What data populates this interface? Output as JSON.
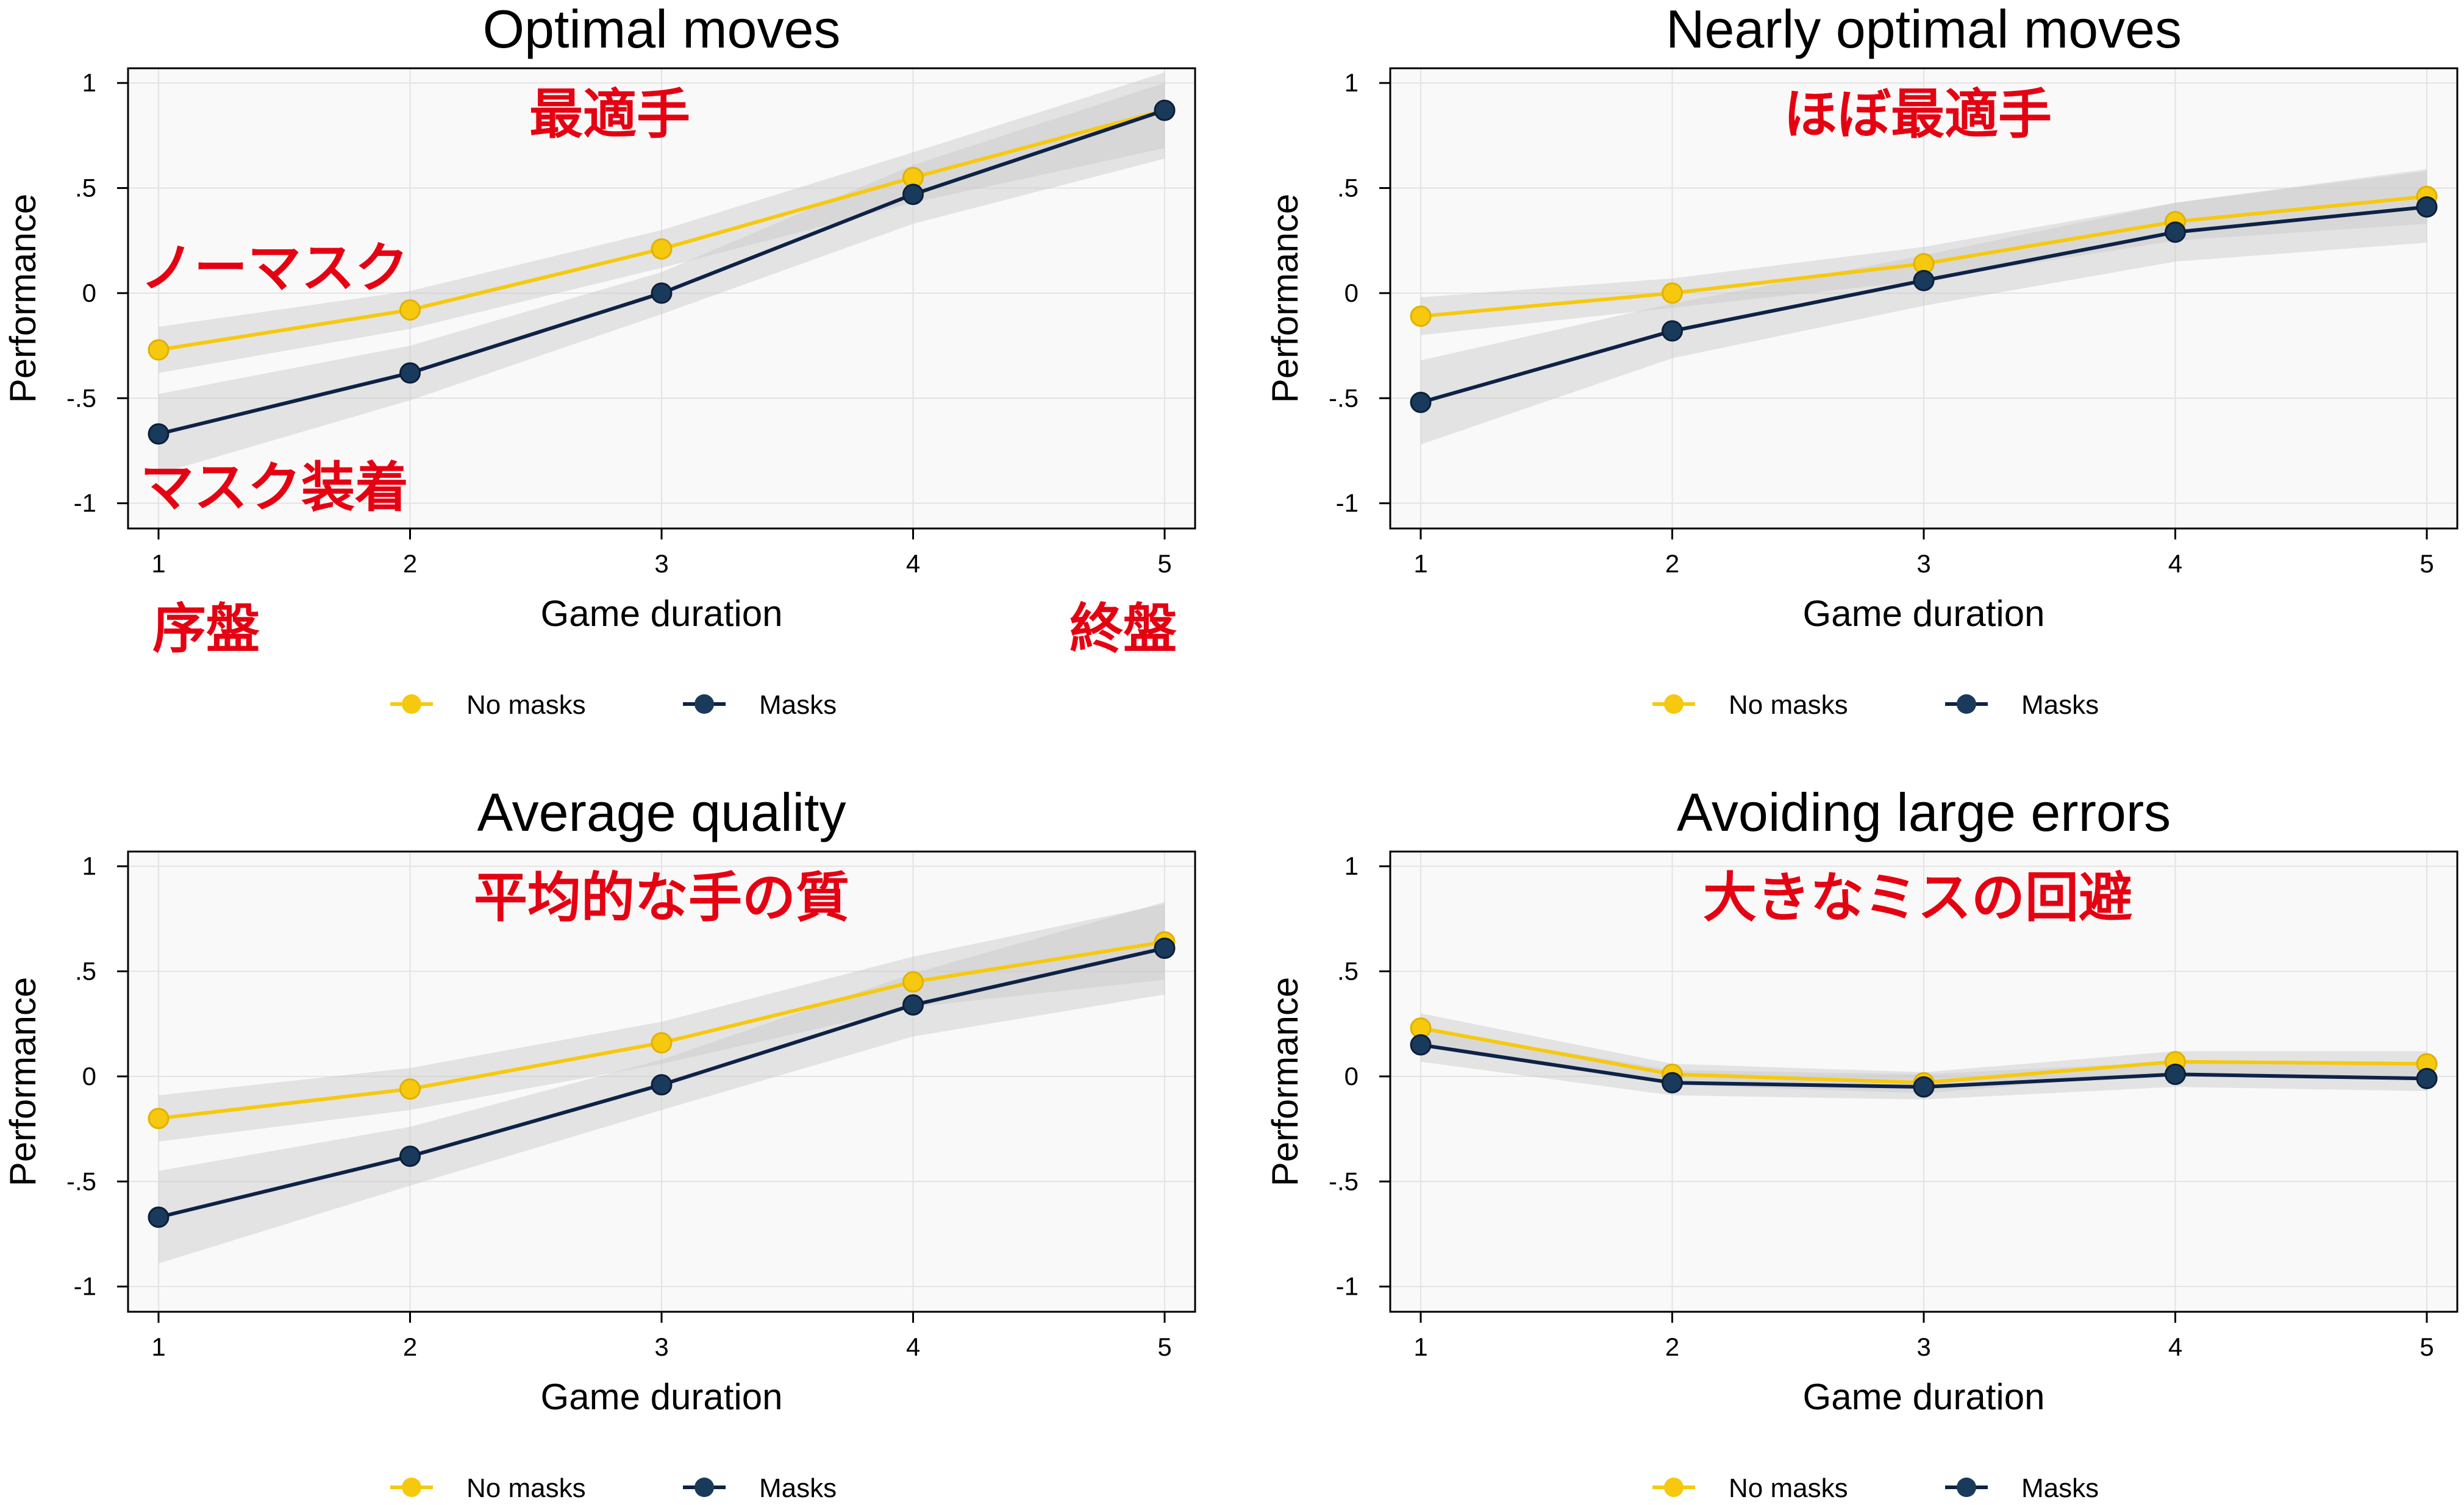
{
  "colors": {
    "no_masks": "#f6c90e",
    "masks": "#1a3a5c",
    "masks_line": "#0e2246",
    "band": "#c8c8c8",
    "plot_bg": "#f9f9f9",
    "grid": "#e3e3e3",
    "annotation": "#e50012"
  },
  "chart_data": [
    {
      "type": "line",
      "title": "Optimal moves",
      "xlabel": "Game duration",
      "ylabel": "Performance",
      "x": [
        1,
        2,
        3,
        4,
        5
      ],
      "xticks": [
        "1",
        "2",
        "3",
        "4",
        "5"
      ],
      "ylim": [
        -1.12,
        1.07
      ],
      "yticks": [
        -1,
        -0.5,
        0,
        0.5,
        1
      ],
      "ytick_labels": [
        "-1",
        "-.5",
        "0",
        ".5",
        "1"
      ],
      "grid": true,
      "legend_position": "bottom",
      "series": [
        {
          "name": "No masks",
          "values": [
            -0.27,
            -0.08,
            0.21,
            0.55,
            0.87
          ],
          "ci_lower": [
            -0.38,
            -0.17,
            0.12,
            0.43,
            0.69
          ],
          "ci_upper": [
            -0.16,
            0.01,
            0.3,
            0.67,
            1.05
          ]
        },
        {
          "name": "Masks",
          "values": [
            -0.67,
            -0.38,
            0.0,
            0.47,
            0.87
          ],
          "ci_lower": [
            -0.86,
            -0.51,
            -0.1,
            0.33,
            0.64
          ],
          "ci_upper": [
            -0.48,
            -0.25,
            0.1,
            0.61,
            1.0
          ]
        }
      ],
      "annotations": [
        {
          "text": "最適手"
        },
        {
          "text": "ノーマスク"
        },
        {
          "text": "マスク装着"
        },
        {
          "text": "序盤"
        },
        {
          "text": "終盤"
        }
      ]
    },
    {
      "type": "line",
      "title": "Nearly optimal moves",
      "xlabel": "Game duration",
      "ylabel": "Performance",
      "x": [
        1,
        2,
        3,
        4,
        5
      ],
      "xticks": [
        "1",
        "2",
        "3",
        "4",
        "5"
      ],
      "ylim": [
        -1.12,
        1.07
      ],
      "yticks": [
        -1,
        -0.5,
        0,
        0.5,
        1
      ],
      "ytick_labels": [
        "-1",
        "-.5",
        "0",
        ".5",
        "1"
      ],
      "grid": true,
      "legend_position": "bottom",
      "series": [
        {
          "name": "No masks",
          "values": [
            -0.11,
            0.0,
            0.14,
            0.34,
            0.46
          ],
          "ci_lower": [
            -0.2,
            -0.07,
            0.06,
            0.25,
            0.33
          ],
          "ci_upper": [
            -0.02,
            0.07,
            0.22,
            0.43,
            0.59
          ]
        },
        {
          "name": "Masks",
          "values": [
            -0.52,
            -0.18,
            0.06,
            0.29,
            0.41
          ],
          "ci_lower": [
            -0.72,
            -0.31,
            -0.06,
            0.15,
            0.24
          ],
          "ci_upper": [
            -0.32,
            -0.05,
            0.18,
            0.43,
            0.58
          ]
        }
      ],
      "annotations": [
        {
          "text": "ほぼ最適手"
        }
      ]
    },
    {
      "type": "line",
      "title": "Average quality",
      "xlabel": "Game duration",
      "ylabel": "Performance",
      "x": [
        1,
        2,
        3,
        4,
        5
      ],
      "xticks": [
        "1",
        "2",
        "3",
        "4",
        "5"
      ],
      "ylim": [
        -1.12,
        1.07
      ],
      "yticks": [
        -1,
        -0.5,
        0,
        0.5,
        1
      ],
      "ytick_labels": [
        "-1",
        "-.5",
        "0",
        ".5",
        "1"
      ],
      "grid": true,
      "legend_position": "bottom",
      "series": [
        {
          "name": "No masks",
          "values": [
            -0.2,
            -0.06,
            0.16,
            0.45,
            0.64
          ],
          "ci_lower": [
            -0.31,
            -0.16,
            0.06,
            0.33,
            0.46
          ],
          "ci_upper": [
            -0.09,
            0.04,
            0.26,
            0.57,
            0.82
          ]
        },
        {
          "name": "Masks",
          "values": [
            -0.67,
            -0.38,
            -0.04,
            0.34,
            0.61
          ],
          "ci_lower": [
            -0.89,
            -0.52,
            -0.16,
            0.19,
            0.39
          ],
          "ci_upper": [
            -0.45,
            -0.24,
            0.08,
            0.49,
            0.83
          ]
        }
      ],
      "annotations": [
        {
          "text": "平均的な手の質"
        }
      ]
    },
    {
      "type": "line",
      "title": "Avoiding large errors",
      "xlabel": "Game duration",
      "ylabel": "Performance",
      "x": [
        1,
        2,
        3,
        4,
        5
      ],
      "xticks": [
        "1",
        "2",
        "3",
        "4",
        "5"
      ],
      "ylim": [
        -1.12,
        1.07
      ],
      "yticks": [
        -1,
        -0.5,
        0,
        0.5,
        1
      ],
      "ytick_labels": [
        "-1",
        "-.5",
        "0",
        ".5",
        "1"
      ],
      "grid": true,
      "legend_position": "bottom",
      "series": [
        {
          "name": "No masks",
          "values": [
            0.23,
            0.01,
            -0.03,
            0.07,
            0.06
          ],
          "ci_lower": [
            0.16,
            -0.04,
            -0.08,
            0.02,
            0.0
          ],
          "ci_upper": [
            0.3,
            0.06,
            0.02,
            0.12,
            0.12
          ]
        },
        {
          "name": "Masks",
          "values": [
            0.15,
            -0.03,
            -0.05,
            0.01,
            -0.01
          ],
          "ci_lower": [
            0.07,
            -0.09,
            -0.11,
            -0.05,
            -0.07
          ],
          "ci_upper": [
            0.23,
            0.03,
            0.01,
            0.07,
            0.05
          ]
        }
      ],
      "annotations": [
        {
          "text": "大きなミスの回避"
        }
      ]
    }
  ]
}
